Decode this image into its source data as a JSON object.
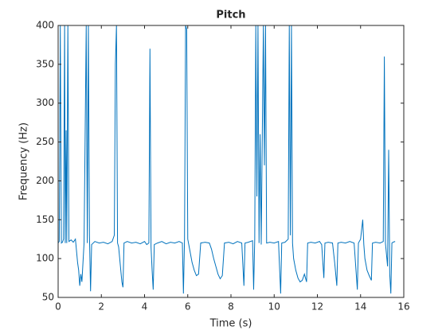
{
  "chart_data": {
    "type": "line",
    "title": "Pitch",
    "xlabel": "Time (s)",
    "ylabel": "Frequency (Hz)",
    "color": "#0072bd",
    "x": [
      0.0,
      0.05,
      0.1,
      0.15,
      0.2,
      0.25,
      0.3,
      0.33,
      0.37,
      0.4,
      0.45,
      0.5,
      0.6,
      0.7,
      0.8,
      0.85,
      0.9,
      0.95,
      1.0,
      1.05,
      1.1,
      1.2,
      1.3,
      1.35,
      1.4,
      1.45,
      1.5,
      1.55,
      1.7,
      1.9,
      2.1,
      2.3,
      2.5,
      2.6,
      2.65,
      2.7,
      2.75,
      2.8,
      2.9,
      2.95,
      3.0,
      3.05,
      3.2,
      3.4,
      3.6,
      3.8,
      4.0,
      4.1,
      4.2,
      4.25,
      4.3,
      4.35,
      4.4,
      4.45,
      4.6,
      4.8,
      5.0,
      5.2,
      5.4,
      5.6,
      5.75,
      5.8,
      5.85,
      5.9,
      5.95,
      6.0,
      6.1,
      6.2,
      6.3,
      6.4,
      6.5,
      6.6,
      6.8,
      7.0,
      7.1,
      7.2,
      7.3,
      7.4,
      7.5,
      7.6,
      7.7,
      7.9,
      8.1,
      8.3,
      8.5,
      8.6,
      8.65,
      8.8,
      9.0,
      9.05,
      9.1,
      9.15,
      9.2,
      9.25,
      9.3,
      9.35,
      9.4,
      9.5,
      9.55,
      9.6,
      9.65,
      9.8,
      10.0,
      10.2,
      10.3,
      10.35,
      10.5,
      10.65,
      10.7,
      10.75,
      10.8,
      10.85,
      10.9,
      11.0,
      11.1,
      11.2,
      11.3,
      11.4,
      11.5,
      11.55,
      11.7,
      11.9,
      12.1,
      12.2,
      12.3,
      12.35,
      12.5,
      12.7,
      12.8,
      12.9,
      12.95,
      13.1,
      13.3,
      13.5,
      13.7,
      13.85,
      13.9,
      14.0,
      14.1,
      14.15,
      14.2,
      14.3,
      14.4,
      14.5,
      14.55,
      14.7,
      14.9,
      15.05,
      15.1,
      15.15,
      15.25,
      15.3,
      15.35,
      15.4,
      15.45,
      15.5,
      15.6
    ],
    "values": [
      120,
      122,
      400,
      120,
      121,
      125,
      400,
      120,
      265,
      120,
      400,
      122,
      124,
      121,
      125,
      110,
      95,
      85,
      65,
      80,
      70,
      120,
      400,
      120,
      400,
      130,
      58,
      118,
      122,
      120,
      121,
      119,
      122,
      130,
      350,
      400,
      120,
      115,
      85,
      70,
      63,
      120,
      122,
      120,
      121,
      119,
      122,
      118,
      120,
      370,
      115,
      85,
      60,
      118,
      120,
      122,
      119,
      121,
      120,
      122,
      120,
      55,
      125,
      400,
      395,
      125,
      110,
      95,
      85,
      78,
      80,
      120,
      121,
      120,
      112,
      100,
      90,
      80,
      74,
      78,
      120,
      121,
      119,
      122,
      120,
      65,
      120,
      121,
      123,
      60,
      125,
      400,
      180,
      400,
      120,
      260,
      118,
      400,
      220,
      400,
      120,
      121,
      120,
      122,
      55,
      120,
      121,
      125,
      400,
      130,
      400,
      120,
      100,
      85,
      75,
      70,
      72,
      80,
      70,
      120,
      121,
      120,
      122,
      118,
      75,
      120,
      121,
      120,
      95,
      65,
      120,
      121,
      120,
      122,
      120,
      60,
      120,
      125,
      150,
      118,
      100,
      85,
      78,
      72,
      120,
      121,
      120,
      122,
      360,
      120,
      90,
      240,
      80,
      55,
      120,
      121,
      122
    ],
    "xlim": [
      0,
      16
    ],
    "xticks": [
      0,
      2,
      4,
      6,
      8,
      10,
      12,
      14,
      16
    ],
    "ylim": [
      50,
      400
    ],
    "yticks": [
      50,
      100,
      150,
      200,
      250,
      300,
      350,
      400
    ]
  }
}
